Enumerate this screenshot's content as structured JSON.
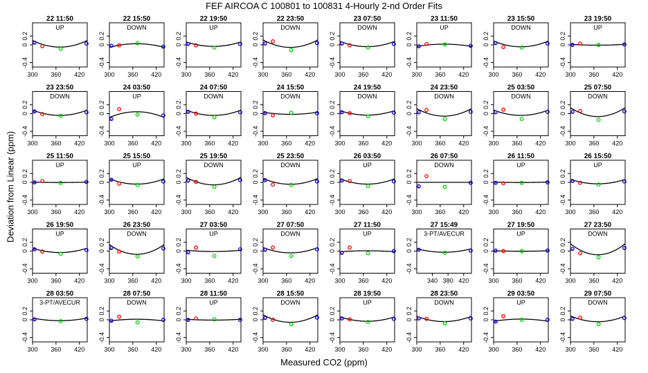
{
  "title": "FEF   AIRCOA C   100801 to 100831   4-Hourly 2-nd Order Fits",
  "xlabel": "Measured CO2 (ppm)",
  "ylabel": "Deviation from Linear (ppm)",
  "colors": {
    "axis": "#000000",
    "curve": "#000000",
    "p1": "#0000cc",
    "p2": "#ff0000",
    "p3": "#00cc00",
    "p4": "#0000cc",
    "tick_marker": "#9900cc"
  },
  "chart_data": {
    "type": "scatter",
    "layout": "small-multiples grid of 5 rows x 8 columns",
    "xlim": [
      300,
      440
    ],
    "ylim": [
      -0.5,
      0.5
    ],
    "x_ticks": [
      300,
      360,
      420
    ],
    "x_ticks_alt": [
      340,
      380,
      420
    ],
    "y_ticks": [
      -0.4,
      0,
      0.2
    ],
    "y_tick_labels": [
      "-0.4",
      "0",
      "0.2"
    ],
    "x_points": [
      305,
      325,
      372,
      438
    ],
    "panels": [
      {
        "time": "22 11:50",
        "dir": "UP",
        "points": [
          0.05,
          -0.03,
          -0.09,
          0.03
        ],
        "curve_a": 0.15
      },
      {
        "time": "22 15:50",
        "dir": "DOWN",
        "points": [
          -0.02,
          -0.01,
          0.04,
          -0.04
        ],
        "curve_a": -0.08
      },
      {
        "time": "22 19:50",
        "dir": "UP",
        "points": [
          0.02,
          -0.01,
          -0.06,
          0.02
        ],
        "curve_a": 0.1
      },
      {
        "time": "22 23:50",
        "dir": "DOWN",
        "points": [
          0.03,
          0.08,
          -0.12,
          0.04
        ],
        "curve_a": 0.17
      },
      {
        "time": "23 07:50",
        "dir": "DOWN",
        "points": [
          0.03,
          -0.01,
          -0.06,
          0.02
        ],
        "curve_a": 0.12
      },
      {
        "time": "23 11:50",
        "dir": "UP",
        "points": [
          -0.03,
          0.02,
          0.01,
          -0.02
        ],
        "curve_a": -0.05
      },
      {
        "time": "23 15:50",
        "dir": "DOWN",
        "points": [
          0.04,
          -0.05,
          -0.06,
          0.03
        ],
        "curve_a": 0.13
      },
      {
        "time": "23 19:50",
        "dir": "UP",
        "points": [
          0.0,
          0.03,
          0.0,
          0.01
        ],
        "curve_a": 0.02
      },
      {
        "time": "23 23:50",
        "dir": "DOWN",
        "points": [
          0.05,
          -0.01,
          -0.05,
          0.03
        ],
        "curve_a": 0.12
      },
      {
        "time": "24 03:50",
        "dir": "UP",
        "points": [
          -0.12,
          0.1,
          -0.02,
          -0.04
        ],
        "curve_a": -0.13
      },
      {
        "time": "24 07:50",
        "dir": "DOWN",
        "points": [
          0.04,
          0.0,
          -0.08,
          0.03
        ],
        "curve_a": 0.12
      },
      {
        "time": "24 15:50",
        "dir": "DOWN",
        "points": [
          0.01,
          -0.04,
          0.02,
          0.01
        ],
        "curve_a": 0.05
      },
      {
        "time": "24 19:50",
        "dir": "DOWN",
        "points": [
          0.03,
          0.01,
          -0.06,
          0.02
        ],
        "curve_a": 0.1
      },
      {
        "time": "24 23:50",
        "dir": "DOWN",
        "points": [
          0.03,
          0.08,
          -0.12,
          0.04
        ],
        "curve_a": 0.17
      },
      {
        "time": "25 03:50",
        "dir": "DOWN",
        "points": [
          0.03,
          0.09,
          -0.12,
          0.04
        ],
        "curve_a": 0.12
      },
      {
        "time": "25 07:50",
        "dir": "DOWN",
        "points": [
          0.04,
          0.06,
          -0.14,
          0.05
        ],
        "curve_a": 0.2
      },
      {
        "time": "25 11:50",
        "dir": "UP",
        "points": [
          0.0,
          0.03,
          -0.01,
          0.01
        ],
        "curve_a": 0.01
      },
      {
        "time": "25 15:50",
        "dir": "UP",
        "points": [
          0.06,
          -0.03,
          -0.06,
          0.02
        ],
        "curve_a": 0.12
      },
      {
        "time": "25 19:50",
        "dir": "DOWN",
        "points": [
          0.04,
          0.01,
          -0.1,
          0.05
        ],
        "curve_a": 0.17
      },
      {
        "time": "25 23:50",
        "dir": "DOWN",
        "points": [
          0.05,
          -0.05,
          -0.06,
          0.02
        ],
        "curve_a": 0.13
      },
      {
        "time": "26 03:50",
        "dir": "UP",
        "points": [
          0.04,
          0.03,
          -0.08,
          0.02
        ],
        "curve_a": 0.12
      },
      {
        "time": "26 07:50",
        "dir": "DOWN",
        "points": [
          -0.09,
          0.14,
          -0.1,
          -0.01
        ],
        "curve_a": 0.0
      },
      {
        "time": "26 11:50",
        "dir": "UP",
        "points": [
          -0.01,
          -0.02,
          -0.01,
          0.0
        ],
        "curve_a": 0.01
      },
      {
        "time": "26 15:50",
        "dir": "UP",
        "points": [
          0.03,
          -0.01,
          -0.05,
          0.02
        ],
        "curve_a": 0.1
      },
      {
        "time": "26 19:50",
        "dir": "UP",
        "points": [
          0.04,
          -0.01,
          -0.06,
          0.02
        ],
        "curve_a": 0.1
      },
      {
        "time": "26 23:50",
        "dir": "DOWN",
        "points": [
          0.07,
          -0.01,
          -0.12,
          0.06
        ],
        "curve_a": 0.22
      },
      {
        "time": "27 03:50",
        "dir": "UP",
        "points": [
          -0.03,
          0.08,
          -0.11,
          0.04
        ],
        "curve_a": 0.03
      },
      {
        "time": "27 07:50",
        "dir": "DOWN",
        "points": [
          0.03,
          0.08,
          -0.11,
          0.04
        ],
        "curve_a": 0.12
      },
      {
        "time": "27 11:50",
        "dir": "UP",
        "points": [
          -0.04,
          0.08,
          -0.05,
          0.0
        ],
        "curve_a": -0.02
      },
      {
        "time": "27 15:49",
        "dir": "3-PT/AVECUR",
        "points": [
          0.03,
          null,
          -0.04,
          0.01
        ],
        "curve_a": 0.08,
        "alt_axis": true
      },
      {
        "time": "27 19:50",
        "dir": "UP",
        "points": [
          0.01,
          0.0,
          0.0,
          0.01
        ],
        "curve_a": 0.01
      },
      {
        "time": "27 23:50",
        "dir": "DOWN",
        "points": [
          0.05,
          -0.05,
          -0.14,
          0.07
        ],
        "curve_a": 0.25
      },
      {
        "time": "28 03:50",
        "dir": "3-PT/AVECUR",
        "points": [
          0.01,
          null,
          -0.03,
          0.02
        ],
        "curve_a": 0.06
      },
      {
        "time": "28 07:50",
        "dir": "DOWN",
        "points": [
          -0.02,
          0.07,
          -0.06,
          0.0
        ],
        "curve_a": -0.04
      },
      {
        "time": "28 11:50",
        "dir": "UP",
        "points": [
          0.0,
          0.03,
          0.01,
          0.0
        ],
        "curve_a": 0.02
      },
      {
        "time": "28 15:50",
        "dir": "DOWN",
        "points": [
          0.04,
          0.0,
          -0.1,
          0.05
        ],
        "curve_a": 0.17
      },
      {
        "time": "28 19:50",
        "dir": "UP",
        "points": [
          0.03,
          0.01,
          -0.05,
          0.02
        ],
        "curve_a": 0.1
      },
      {
        "time": "28 23:50",
        "dir": "DOWN",
        "points": [
          0.03,
          0.02,
          -0.08,
          0.03
        ],
        "curve_a": 0.12
      },
      {
        "time": "29 03:50",
        "dir": "UP",
        "points": [
          -0.04,
          0.08,
          0.0,
          0.0
        ],
        "curve_a": -0.05
      },
      {
        "time": "29 07:50",
        "dir": "DOWN",
        "points": [
          0.02,
          0.05,
          -0.1,
          0.04
        ],
        "curve_a": 0.13
      }
    ]
  }
}
